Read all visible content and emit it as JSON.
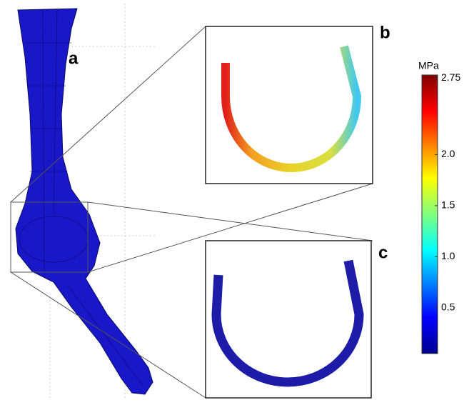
{
  "panels": [
    {
      "label": "a"
    },
    {
      "label": "b"
    },
    {
      "label": "c"
    }
  ],
  "colorbar": {
    "unit": "MPa",
    "lim": [
      0.05,
      2.78
    ],
    "ticks": [
      0.5,
      {
        "value": 1,
        "label": "1.0"
      },
      1.5,
      {
        "value": 2,
        "label": "2.0"
      },
      2.75
    ]
  }
}
